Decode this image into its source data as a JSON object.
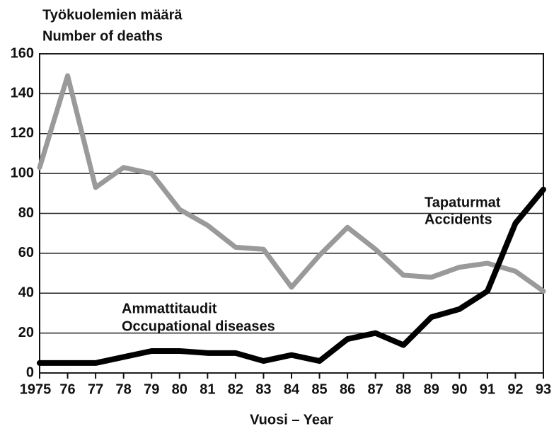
{
  "chart_data": {
    "type": "line",
    "title": "Työkuolemien määrä",
    "subtitle": "Number of deaths",
    "xlabel": "Vuosi – Year",
    "categories": [
      "1975",
      "76",
      "77",
      "78",
      "79",
      "80",
      "81",
      "82",
      "83",
      "84",
      "85",
      "86",
      "87",
      "88",
      "89",
      "90",
      "91",
      "92",
      "93"
    ],
    "series": [
      {
        "name": "Tapaturmat",
        "name_en": "Accidents",
        "color": "#9a9a9a",
        "values": [
          103,
          149,
          93,
          103,
          100,
          82,
          74,
          63,
          62,
          43,
          59,
          73,
          62,
          49,
          48,
          53,
          55,
          51,
          41
        ]
      },
      {
        "name": "Ammattitaudit",
        "name_en": "Occupational diseases",
        "color": "#000000",
        "values": [
          5,
          5,
          5,
          8,
          11,
          11,
          10,
          10,
          6,
          9,
          6,
          17,
          20,
          14,
          28,
          32,
          41,
          75,
          92
        ]
      }
    ],
    "ylim": [
      0,
      160
    ],
    "yticks": [
      0,
      20,
      40,
      60,
      80,
      100,
      120,
      140,
      160
    ],
    "grid": true
  }
}
